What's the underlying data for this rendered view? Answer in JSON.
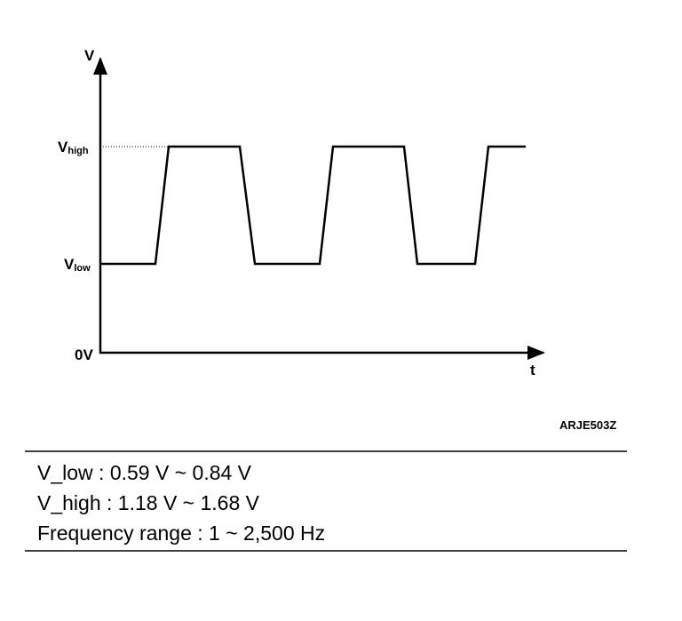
{
  "diagram": {
    "y_axis_label": "V",
    "x_axis_label": "t",
    "levels": [
      {
        "main": "V",
        "sub": "high"
      },
      {
        "main": "V",
        "sub": "low"
      },
      {
        "main": "0V"
      }
    ],
    "figure_code": "ARJE503Z"
  },
  "specs": [
    "V_low :  0.59 V ~ 0.84 V",
    "V_high :  1.18 V ~ 1.68 V",
    "Frequency range :  1 ~ 2,500 Hz"
  ]
}
